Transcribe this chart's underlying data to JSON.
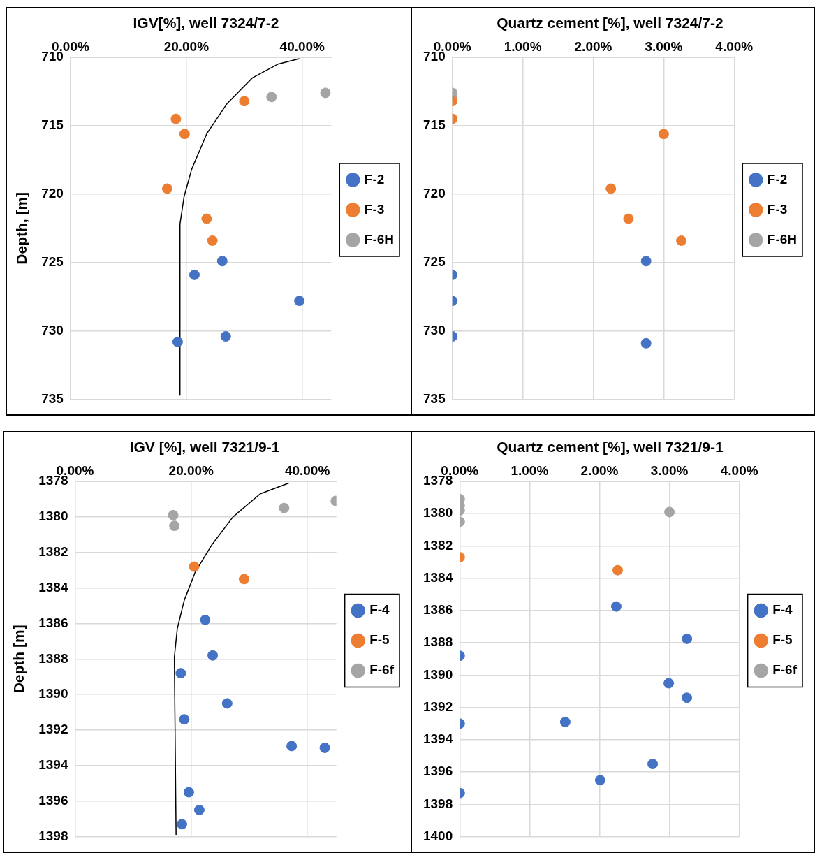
{
  "chart_data": [
    {
      "type": "scatter",
      "title": "IGV[%], well 7324/7-2",
      "ylabel": "Depth, [m]",
      "xlim": [
        0,
        45
      ],
      "xticks": [
        {
          "value": 0,
          "label": "0.00%"
        },
        {
          "value": 20,
          "label": "20.00%"
        },
        {
          "value": 40,
          "label": "40.00%"
        }
      ],
      "ylim": [
        735,
        710
      ],
      "yticks": [
        710,
        715,
        720,
        725,
        730,
        735
      ],
      "grid": true,
      "legend": "right",
      "marker": "circle",
      "series": [
        {
          "name": "F-2",
          "color": "#4472c4",
          "x": [
            26.2,
            21.4,
            39.5,
            26.8,
            18.5
          ],
          "values": [
            724.9,
            725.9,
            727.8,
            730.4,
            730.8
          ]
        },
        {
          "name": "F-3",
          "color": "#ed7d31",
          "x": [
            30.0,
            18.2,
            19.7,
            16.7,
            23.5,
            24.5
          ],
          "values": [
            713.2,
            714.5,
            715.6,
            719.6,
            721.8,
            723.4
          ]
        },
        {
          "name": "F-6H",
          "color": "#a5a5a5",
          "x": [
            34.7,
            44.0
          ],
          "values": [
            712.9,
            712.6
          ]
        },
        {
          "type": "line",
          "color": "#000000",
          "marker": "none",
          "x": [
            39.5,
            35.8,
            31.4,
            27.0,
            23.5,
            20.9,
            19.6,
            18.9,
            18.9
          ],
          "values": [
            710.1,
            710.5,
            711.5,
            713.4,
            715.6,
            718.2,
            720.2,
            722.2,
            734.7
          ]
        }
      ]
    },
    {
      "type": "scatter",
      "title": "Quartz cement [%], well 7324/7-2",
      "xlim": [
        0,
        4
      ],
      "xticks": [
        {
          "value": 0,
          "label": "0.00%"
        },
        {
          "value": 1,
          "label": "1.00%"
        },
        {
          "value": 2,
          "label": "2.00%"
        },
        {
          "value": 3,
          "label": "3.00%"
        },
        {
          "value": 4,
          "label": "4.00%"
        }
      ],
      "ylim": [
        735,
        710
      ],
      "yticks": [
        710,
        715,
        720,
        725,
        730,
        735
      ],
      "grid": true,
      "legend": "right",
      "marker": "circle",
      "series": [
        {
          "name": "F-2",
          "color": "#4472c4",
          "x": [
            2.75,
            0,
            0,
            0,
            2.75
          ],
          "values": [
            724.9,
            725.9,
            727.8,
            730.4,
            730.9
          ]
        },
        {
          "name": "F-3",
          "color": "#ed7d31",
          "x": [
            0,
            0,
            3.0,
            2.25,
            2.5,
            3.25
          ],
          "values": [
            713.2,
            714.5,
            715.6,
            719.6,
            721.8,
            723.4
          ]
        },
        {
          "name": "F-6H",
          "color": "#a5a5a5",
          "x": [
            0,
            0
          ],
          "values": [
            712.6,
            712.9
          ]
        }
      ]
    },
    {
      "type": "scatter",
      "title": "IGV [%], well 7321/9-1",
      "ylabel": "Depth [m]",
      "xlim": [
        0,
        45
      ],
      "xticks": [
        {
          "value": 0,
          "label": "0.00%"
        },
        {
          "value": 20,
          "label": "20.00%"
        },
        {
          "value": 40,
          "label": "40.00%"
        }
      ],
      "ylim": [
        1398,
        1378
      ],
      "yticks": [
        1378,
        1380,
        1382,
        1384,
        1386,
        1388,
        1390,
        1392,
        1394,
        1396,
        1398
      ],
      "grid": true,
      "legend": "right",
      "marker": "circle",
      "series": [
        {
          "name": "F-4",
          "color": "#4472c4",
          "x": [
            22.4,
            23.7,
            18.2,
            26.2,
            18.8,
            37.3,
            43.0,
            19.6,
            21.4,
            18.4
          ],
          "values": [
            1385.8,
            1387.8,
            1388.8,
            1390.5,
            1391.4,
            1392.9,
            1393.0,
            1395.5,
            1396.5,
            1397.3
          ]
        },
        {
          "name": "F-5",
          "color": "#ed7d31",
          "x": [
            20.5,
            29.1
          ],
          "values": [
            1382.8,
            1383.5
          ]
        },
        {
          "name": "F-6f",
          "color": "#a5a5a5",
          "x": [
            16.9,
            17.1,
            36.0,
            44.9
          ],
          "values": [
            1379.9,
            1380.5,
            1379.5,
            1379.1
          ]
        },
        {
          "type": "line",
          "color": "#000000",
          "marker": "none",
          "x": [
            36.8,
            31.9,
            27.2,
            23.5,
            20.7,
            18.8,
            17.6,
            17.1,
            17.4
          ],
          "values": [
            1378.1,
            1378.7,
            1380.0,
            1381.6,
            1383.1,
            1384.7,
            1386.3,
            1387.9,
            1397.9
          ]
        }
      ]
    },
    {
      "type": "scatter",
      "title": "Quartz cement [%], well 7321/9-1",
      "xlim": [
        0,
        4
      ],
      "xticks": [
        {
          "value": 0,
          "label": "0.00%"
        },
        {
          "value": 1,
          "label": "1.00%"
        },
        {
          "value": 2,
          "label": "2.00%"
        },
        {
          "value": 3,
          "label": "3.00%"
        },
        {
          "value": 4,
          "label": "4.00%"
        }
      ],
      "ylim": [
        1400,
        1378
      ],
      "yticks": [
        1378,
        1380,
        1382,
        1384,
        1386,
        1388,
        1390,
        1392,
        1394,
        1396,
        1398,
        1400
      ],
      "grid": true,
      "legend": "right",
      "marker": "circle",
      "series": [
        {
          "name": "F-4",
          "color": "#4472c4",
          "x": [
            2.24,
            3.25,
            0,
            2.99,
            3.25,
            0,
            1.51,
            2.76,
            2.01,
            0
          ],
          "values": [
            1385.75,
            1387.75,
            1388.8,
            1390.5,
            1391.4,
            1393.0,
            1392.9,
            1395.5,
            1396.5,
            1397.3
          ]
        },
        {
          "name": "F-5",
          "color": "#ed7d31",
          "x": [
            0,
            2.26
          ],
          "values": [
            1382.7,
            1383.5
          ]
        },
        {
          "name": "F-6f",
          "color": "#a5a5a5",
          "x": [
            0,
            0,
            0,
            0,
            3.0
          ],
          "values": [
            1379.1,
            1379.5,
            1379.8,
            1380.5,
            1379.9
          ]
        }
      ]
    }
  ]
}
